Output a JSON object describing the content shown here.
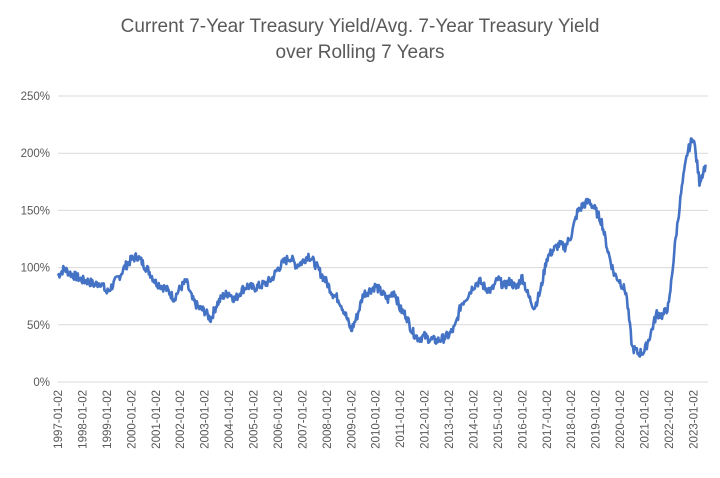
{
  "chart_data": {
    "type": "line",
    "title_line1": "Current 7-Year Treasury Yield/Avg. 7-Year Treasury Yield",
    "title_line2": "over Rolling 7 Years",
    "xlabel": "",
    "ylabel": "",
    "ylim": [
      0,
      250
    ],
    "y_ticks": [
      "0%",
      "50%",
      "100%",
      "150%",
      "200%",
      "250%"
    ],
    "x_ticks": [
      "1997-01-02",
      "1998-01-02",
      "1999-01-02",
      "2000-01-02",
      "2001-01-02",
      "2002-01-02",
      "2003-01-02",
      "2004-01-02",
      "2005-01-02",
      "2006-01-02",
      "2007-01-02",
      "2008-01-02",
      "2009-01-02",
      "2010-01-02",
      "2011-01-02",
      "2012-01-02",
      "2013-01-02",
      "2014-01-02",
      "2015-01-02",
      "2016-01-02",
      "2017-01-02",
      "2018-01-02",
      "2019-01-02",
      "2020-01-02",
      "2021-01-02",
      "2022-01-02",
      "2023-01-02"
    ],
    "grid": true,
    "series_color": "#4472c4",
    "x": [
      "1997-01",
      "1997-04",
      "1997-07",
      "1997-10",
      "1998-01",
      "1998-04",
      "1998-07",
      "1998-10",
      "1999-01",
      "1999-04",
      "1999-07",
      "1999-10",
      "2000-01",
      "2000-04",
      "2000-07",
      "2000-10",
      "2001-01",
      "2001-04",
      "2001-07",
      "2001-10",
      "2002-01",
      "2002-04",
      "2002-07",
      "2002-10",
      "2003-01",
      "2003-04",
      "2003-07",
      "2003-10",
      "2004-01",
      "2004-04",
      "2004-07",
      "2004-10",
      "2005-01",
      "2005-04",
      "2005-07",
      "2005-10",
      "2006-01",
      "2006-04",
      "2006-07",
      "2006-10",
      "2007-01",
      "2007-04",
      "2007-07",
      "2007-10",
      "2008-01",
      "2008-04",
      "2008-07",
      "2008-10",
      "2009-01",
      "2009-04",
      "2009-07",
      "2009-10",
      "2010-01",
      "2010-04",
      "2010-07",
      "2010-10",
      "2011-01",
      "2011-04",
      "2011-07",
      "2011-10",
      "2012-01",
      "2012-04",
      "2012-07",
      "2012-10",
      "2013-01",
      "2013-04",
      "2013-07",
      "2013-10",
      "2014-01",
      "2014-04",
      "2014-07",
      "2014-10",
      "2015-01",
      "2015-04",
      "2015-07",
      "2015-10",
      "2016-01",
      "2016-04",
      "2016-07",
      "2016-10",
      "2017-01",
      "2017-04",
      "2017-07",
      "2017-10",
      "2018-01",
      "2018-04",
      "2018-07",
      "2018-10",
      "2019-01",
      "2019-04",
      "2019-07",
      "2019-10",
      "2020-01",
      "2020-04",
      "2020-07",
      "2020-10",
      "2021-01",
      "2021-04",
      "2021-07",
      "2021-10",
      "2022-01",
      "2022-04",
      "2022-07",
      "2022-10",
      "2023-01",
      "2023-04",
      "2023-07"
    ],
    "values": [
      93,
      99,
      95,
      92,
      89,
      88,
      85,
      87,
      78,
      85,
      92,
      101,
      107,
      110,
      103,
      96,
      87,
      84,
      80,
      73,
      82,
      88,
      72,
      65,
      62,
      55,
      68,
      75,
      78,
      72,
      80,
      84,
      82,
      84,
      86,
      90,
      99,
      105,
      109,
      102,
      105,
      111,
      104,
      95,
      87,
      77,
      72,
      60,
      45,
      58,
      77,
      80,
      84,
      78,
      72,
      80,
      64,
      58,
      44,
      38,
      40,
      37,
      36,
      38,
      41,
      48,
      68,
      75,
      84,
      88,
      82,
      80,
      90,
      84,
      88,
      82,
      92,
      75,
      65,
      80,
      108,
      115,
      120,
      118,
      128,
      148,
      155,
      158,
      150,
      140,
      115,
      95,
      88,
      78,
      30,
      25,
      27,
      42,
      60,
      58,
      67,
      120,
      165,
      200,
      215,
      175,
      190
    ]
  }
}
